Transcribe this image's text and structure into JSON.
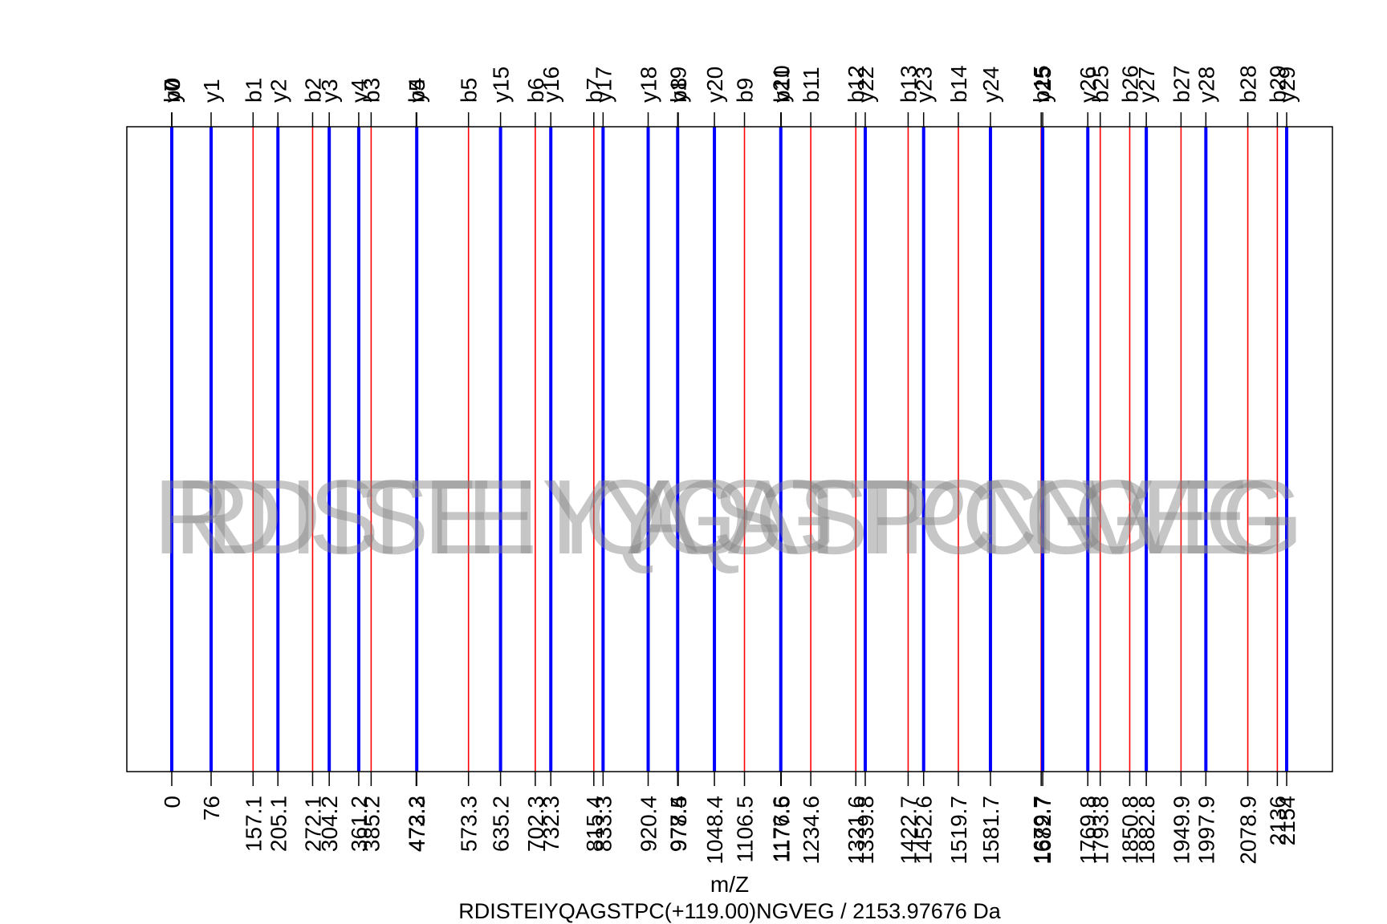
{
  "chart_data": {
    "type": "spectrum",
    "title": "RDISTEIYQAGSTPC(+119.00)NGVEG / 2153.97676 Da",
    "xlabel": "m/Z",
    "ylabel": "",
    "xlim": [
      -55,
      2230
    ],
    "colors": {
      "b": "#ff0000",
      "y": "#0000ff",
      "axis": "#000000",
      "seq": "#808080"
    },
    "b_ions": [
      {
        "label": "b1",
        "mz": 157.1
      },
      {
        "label": "b2",
        "mz": 272.1
      },
      {
        "label": "b3",
        "mz": 385.2
      },
      {
        "label": "b4",
        "mz": 472.2
      },
      {
        "label": "b5",
        "mz": 573.3
      },
      {
        "label": "b6",
        "mz": 702.3
      },
      {
        "label": "b7",
        "mz": 815.4
      },
      {
        "label": "b8",
        "mz": 978.5
      },
      {
        "label": "b9",
        "mz": 1106.5
      },
      {
        "label": "b10",
        "mz": 1177.5
      },
      {
        "label": "b11",
        "mz": 1234.6
      },
      {
        "label": "b12",
        "mz": 1321.6
      },
      {
        "label": "b13",
        "mz": 1422.7
      },
      {
        "label": "b14",
        "mz": 1519.7
      },
      {
        "label": "b15",
        "mz": 1679.7
      },
      {
        "label": "b25",
        "mz": 1793.8
      },
      {
        "label": "b26",
        "mz": 1850.8
      },
      {
        "label": "b27",
        "mz": 1949.9
      },
      {
        "label": "b28",
        "mz": 2078.9
      },
      {
        "label": "b29",
        "mz": 2136
      }
    ],
    "y_ions": [
      {
        "label": "y1",
        "mz": 76
      },
      {
        "label": "y2",
        "mz": 205.1
      },
      {
        "label": "y3",
        "mz": 304.2
      },
      {
        "label": "y4",
        "mz": 361.2
      },
      {
        "label": "y5",
        "mz": 473.3
      },
      {
        "label": "y15",
        "mz": 635.2
      },
      {
        "label": "y16",
        "mz": 732.3
      },
      {
        "label": "y17",
        "mz": 833.3
      },
      {
        "label": "y18",
        "mz": 920.4
      },
      {
        "label": "y19",
        "mz": 977.4
      },
      {
        "label": "y20",
        "mz": 1048.4
      },
      {
        "label": "y21",
        "mz": 1176.6
      },
      {
        "label": "y22",
        "mz": 1339.8
      },
      {
        "label": "y23",
        "mz": 1452.6
      },
      {
        "label": "y24",
        "mz": 1581.7
      },
      {
        "label": "y25",
        "mz": 1682.7
      },
      {
        "label": "y26",
        "mz": 1769.8
      },
      {
        "label": "y27",
        "mz": 1882.8
      },
      {
        "label": "y28",
        "mz": 1997.9
      },
      {
        "label": "y29",
        "mz": 2154
      }
    ],
    "extra_top_labels": [
      {
        "label": "b0",
        "mz": 0
      },
      {
        "label": "y0",
        "mz": 0
      },
      {
        "label": "y7",
        "mz": 0
      }
    ],
    "tick_labels": [
      {
        "label": "0",
        "mz": 0
      },
      {
        "label": "76",
        "mz": 76
      },
      {
        "label": "157.1",
        "mz": 157.1
      },
      {
        "label": "205.1",
        "mz": 205.1
      },
      {
        "label": "272.1",
        "mz": 272.1
      },
      {
        "label": "304.2",
        "mz": 304.2
      },
      {
        "label": "361.2",
        "mz": 361.2
      },
      {
        "label": "385.2",
        "mz": 385.2
      },
      {
        "label": "472.2",
        "mz": 472.2
      },
      {
        "label": "473.3",
        "mz": 473.3
      },
      {
        "label": "573.3",
        "mz": 573.3
      },
      {
        "label": "635.2",
        "mz": 635.2
      },
      {
        "label": "702.3",
        "mz": 702.3
      },
      {
        "label": "732.3",
        "mz": 732.3
      },
      {
        "label": "815.4",
        "mz": 815.4
      },
      {
        "label": "833.3",
        "mz": 833.3
      },
      {
        "label": "920.4",
        "mz": 920.4
      },
      {
        "label": "977.4",
        "mz": 977.4
      },
      {
        "label": "978.5",
        "mz": 978.5
      },
      {
        "label": "1048.4",
        "mz": 1048.4
      },
      {
        "label": "1106.5",
        "mz": 1106.5
      },
      {
        "label": "1176.6",
        "mz": 1176.6
      },
      {
        "label": "1177.5",
        "mz": 1177.5
      },
      {
        "label": "1234.6",
        "mz": 1234.6
      },
      {
        "label": "1321.6",
        "mz": 1321.6
      },
      {
        "label": "1339.8",
        "mz": 1339.8
      },
      {
        "label": "1422.7",
        "mz": 1422.7
      },
      {
        "label": "1452.6",
        "mz": 1452.6
      },
      {
        "label": "1519.7",
        "mz": 1519.7
      },
      {
        "label": "1581.7",
        "mz": 1581.7
      },
      {
        "label": "1679.7",
        "mz": 1679.7
      },
      {
        "label": "1682.7",
        "mz": 1682.7
      },
      {
        "label": "1769.8",
        "mz": 1769.8
      },
      {
        "label": "1793.8",
        "mz": 1793.8
      },
      {
        "label": "1850.8",
        "mz": 1850.8
      },
      {
        "label": "1882.8",
        "mz": 1882.8
      },
      {
        "label": "1949.9",
        "mz": 1949.9
      },
      {
        "label": "1997.9",
        "mz": 1997.9
      },
      {
        "label": "2078.9",
        "mz": 2078.9
      },
      {
        "label": "2136",
        "mz": 2136
      },
      {
        "label": "2154",
        "mz": 2154
      }
    ],
    "sequence_forward": [
      {
        "aa": "R",
        "from": 0,
        "to": 157.1
      },
      {
        "aa": "D",
        "from": 157.1,
        "to": 272.1
      },
      {
        "aa": "I",
        "from": 272.1,
        "to": 385.2
      },
      {
        "aa": "S",
        "from": 385.2,
        "to": 472.2
      },
      {
        "aa": "T",
        "from": 472.2,
        "to": 573.3
      },
      {
        "aa": "E",
        "from": 573.3,
        "to": 702.3
      },
      {
        "aa": "I",
        "from": 702.3,
        "to": 815.4
      },
      {
        "aa": "Y",
        "from": 815.4,
        "to": 978.5
      },
      {
        "aa": "Q",
        "from": 978.5,
        "to": 1106.5
      },
      {
        "aa": "A",
        "from": 1106.5,
        "to": 1177.5
      },
      {
        "aa": "G",
        "from": 1177.5,
        "to": 1234.6
      },
      {
        "aa": "S",
        "from": 1234.6,
        "to": 1321.6
      },
      {
        "aa": "T",
        "from": 1321.6,
        "to": 1422.7
      },
      {
        "aa": "P",
        "from": 1422.7,
        "to": 1519.7
      },
      {
        "aa": "C",
        "from": 1519.7,
        "to": 1679.7
      },
      {
        "aa": "N",
        "from": 1679.7,
        "to": 1793.8
      },
      {
        "aa": "G",
        "from": 1793.8,
        "to": 1850.8
      },
      {
        "aa": "V",
        "from": 1850.8,
        "to": 1949.9
      },
      {
        "aa": "E",
        "from": 1949.9,
        "to": 2078.9
      },
      {
        "aa": "G",
        "from": 2078.9,
        "to": 2136
      }
    ],
    "sequence_reverse": [
      {
        "aa": "G",
        "from": 2154,
        "to": 1997.9
      },
      {
        "aa": "E",
        "from": 1997.9,
        "to": 1882.8
      },
      {
        "aa": "V",
        "from": 1882.8,
        "to": 1769.8
      },
      {
        "aa": "G",
        "from": 1769.8,
        "to": 1682.7
      },
      {
        "aa": "N",
        "from": 1682.7,
        "to": 1581.7
      },
      {
        "aa": "C",
        "from": 1581.7,
        "to": 1452.6
      },
      {
        "aa": "P",
        "from": 1452.6,
        "to": 1339.8
      },
      {
        "aa": "T",
        "from": 1339.8,
        "to": 1176.6
      },
      {
        "aa": "S",
        "from": 1176.6,
        "to": 1048.4
      },
      {
        "aa": "G",
        "from": 1048.4,
        "to": 977.4
      },
      {
        "aa": "A",
        "from": 977.4,
        "to": 920.4
      },
      {
        "aa": "Q",
        "from": 920.4,
        "to": 833.3
      },
      {
        "aa": "Y",
        "from": 833.3,
        "to": 732.3
      },
      {
        "aa": "I",
        "from": 732.3,
        "to": 635.2
      },
      {
        "aa": "E",
        "from": 635.2,
        "to": 473.3
      },
      {
        "aa": "T",
        "from": 473.3,
        "to": 361.2
      },
      {
        "aa": "S",
        "from": 361.2,
        "to": 304.2
      },
      {
        "aa": "I",
        "from": 304.2,
        "to": 205.1
      },
      {
        "aa": "D",
        "from": 205.1,
        "to": 76
      },
      {
        "aa": "R",
        "from": 76,
        "to": 0
      }
    ],
    "grid": false,
    "legend": "none"
  }
}
